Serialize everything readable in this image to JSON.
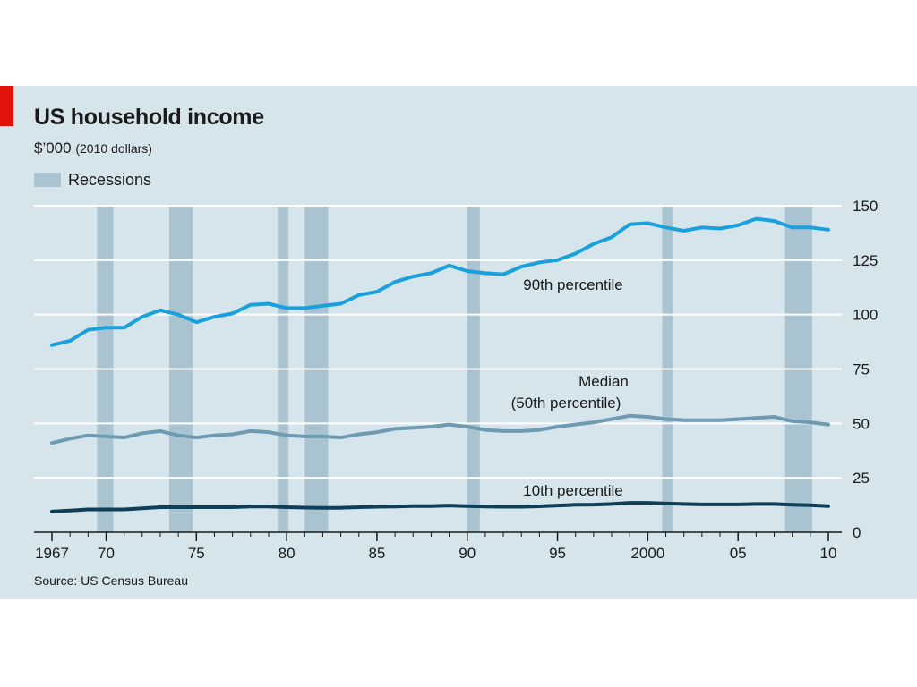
{
  "header": {
    "title": "US household income",
    "subtitle_unit": "$’000",
    "subtitle_note": "(2010 dollars)",
    "legend_label": "Recessions",
    "source": "Source: US Census Bureau"
  },
  "colors": {
    "background": "#d6e4ec",
    "recession": "#a9c3d1",
    "p90": "#1aa0dd",
    "median": "#6f9bb2",
    "p10": "#0e3e58",
    "accent": "#e3120b"
  },
  "chart_data": {
    "type": "line",
    "title": "US household income",
    "ylabel": "$’000 (2010 dollars)",
    "xlim": [
      1967,
      2010
    ],
    "ylim": [
      0,
      150
    ],
    "y_ticks": [
      0,
      25,
      50,
      75,
      100,
      125,
      150
    ],
    "x_ticks": [
      {
        "year": 1967,
        "label": "1967"
      },
      {
        "year": 1970,
        "label": "70"
      },
      {
        "year": 1975,
        "label": "75"
      },
      {
        "year": 1980,
        "label": "80"
      },
      {
        "year": 1985,
        "label": "85"
      },
      {
        "year": 1990,
        "label": "90"
      },
      {
        "year": 1995,
        "label": "95"
      },
      {
        "year": 2000,
        "label": "2000"
      },
      {
        "year": 2005,
        "label": "05"
      },
      {
        "year": 2010,
        "label": "10"
      }
    ],
    "grid": true,
    "recessions": [
      [
        1969.5,
        1970.4
      ],
      [
        1973.5,
        1974.8
      ],
      [
        1979.5,
        1980.1
      ],
      [
        1981.0,
        1982.3
      ],
      [
        1990.0,
        1990.7
      ],
      [
        2000.8,
        2001.4
      ],
      [
        2007.6,
        2009.1
      ]
    ],
    "x": [
      1967,
      1968,
      1969,
      1970,
      1971,
      1972,
      1973,
      1974,
      1975,
      1976,
      1977,
      1978,
      1979,
      1980,
      1981,
      1982,
      1983,
      1984,
      1985,
      1986,
      1987,
      1988,
      1989,
      1990,
      1991,
      1992,
      1993,
      1994,
      1995,
      1996,
      1997,
      1998,
      1999,
      2000,
      2001,
      2002,
      2003,
      2004,
      2005,
      2006,
      2007,
      2008,
      2009,
      2010
    ],
    "series": [
      {
        "name": "90th percentile",
        "label": "90th percentile",
        "values": [
          86,
          88,
          93,
          94,
          94,
          99,
          102,
          100,
          96.5,
          99,
          100.5,
          104.5,
          105,
          103,
          103,
          104,
          105,
          109,
          110.5,
          115,
          117.5,
          119,
          122.5,
          120,
          119,
          118.5,
          122,
          124,
          125,
          128,
          132.5,
          135.5,
          141.5,
          142,
          140,
          138.5,
          140,
          139.5,
          141,
          144,
          143,
          140,
          140,
          139
        ]
      },
      {
        "name": "Median (50th percentile)",
        "label_lines": [
          "Median",
          "(50th percentile)"
        ],
        "values": [
          41,
          43,
          44.5,
          44,
          43.5,
          45.5,
          46.5,
          44.5,
          43.5,
          44.5,
          45,
          46.5,
          46,
          44.5,
          44,
          44,
          43.5,
          45,
          46,
          47.5,
          48,
          48.5,
          49.5,
          48.5,
          47,
          46.5,
          46.5,
          47,
          48.5,
          49.5,
          50.5,
          52,
          53.5,
          53,
          52,
          51.5,
          51.5,
          51.5,
          52,
          52.5,
          53,
          51,
          50.5,
          49.5
        ]
      },
      {
        "name": "10th percentile",
        "label": "10th percentile",
        "values": [
          9.5,
          10,
          10.5,
          10.5,
          10.5,
          11,
          11.5,
          11.5,
          11.5,
          11.5,
          11.5,
          11.8,
          11.8,
          11.5,
          11.3,
          11.2,
          11.2,
          11.5,
          11.7,
          11.8,
          12,
          12,
          12.3,
          12,
          11.8,
          11.7,
          11.7,
          11.9,
          12.3,
          12.6,
          12.7,
          13,
          13.5,
          13.5,
          13.2,
          13,
          12.8,
          12.8,
          12.8,
          13,
          13,
          12.6,
          12.4,
          12
        ]
      }
    ]
  }
}
